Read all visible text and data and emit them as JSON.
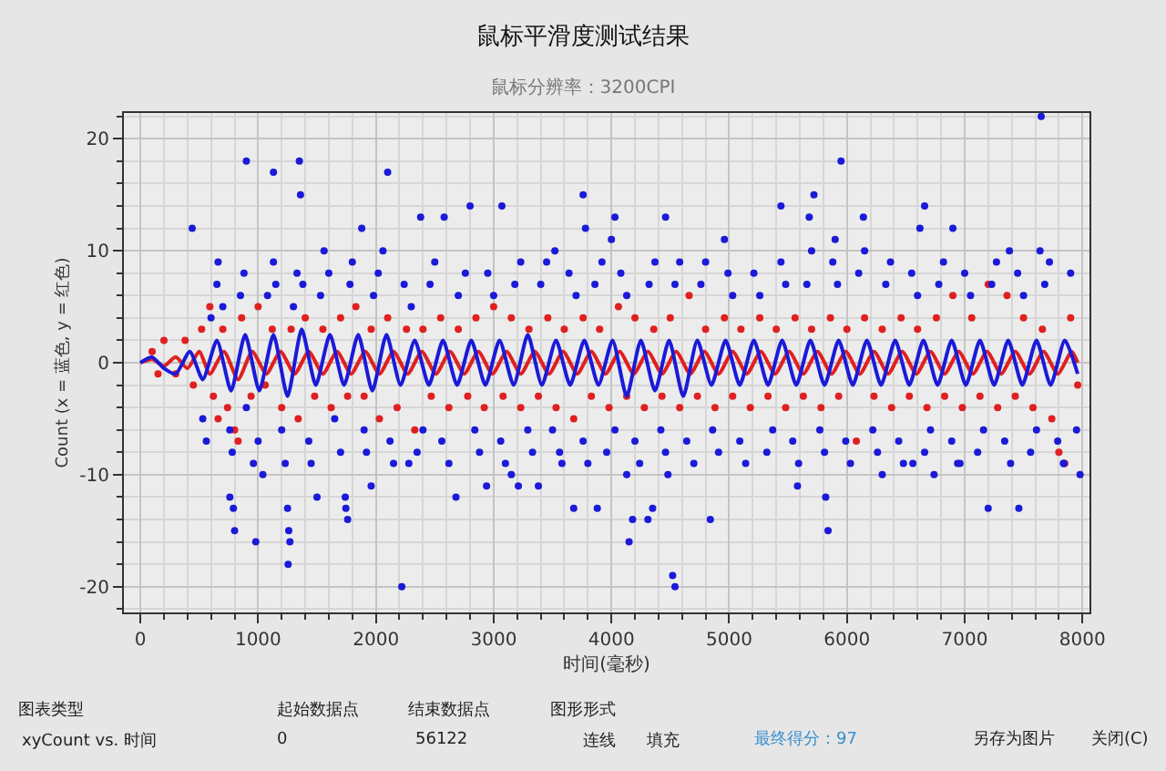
{
  "chart_data": {
    "type": "scatter",
    "title": "鼠标平滑度测试结果",
    "subtitle": "鼠标分辨率：3200CPI",
    "xlabel": "时间(毫秒)",
    "ylabel": "Count (x = 蓝色, y = 红色)",
    "xlim": [
      -140,
      8060
    ],
    "ylim": [
      -22.3,
      22.3
    ],
    "xticks": [
      0,
      1000,
      2000,
      3000,
      4000,
      5000,
      6000,
      7000,
      8000
    ],
    "yticks": [
      -20,
      -10,
      0,
      10,
      20
    ],
    "grid": true,
    "annotations": [
      "图表类型",
      "xyCount vs. 时间",
      "起始数据点",
      "0",
      "结束数据点",
      "56122",
      "图形形式",
      "连线",
      "填充",
      "最终得分：97",
      "另存为图片",
      "关闭(C)"
    ],
    "series": [
      {
        "marker": "circle",
        "color": "#e02020",
        "x": [
          100,
          150,
          200,
          300,
          380,
          450,
          520,
          590,
          620,
          660,
          700,
          740,
          800,
          830,
          860,
          940,
          1000,
          1060,
          1120,
          1200,
          1280,
          1340,
          1400,
          1480,
          1550,
          1620,
          1700,
          1760,
          1830,
          1900,
          1960,
          2030,
          2100,
          2180,
          2260,
          2330,
          2400,
          2470,
          2550,
          2620,
          2700,
          2780,
          2850,
          2920,
          3000,
          3080,
          3150,
          3230,
          3300,
          3380,
          3460,
          3530,
          3600,
          3680,
          3760,
          3830,
          3900,
          3980,
          4060,
          4130,
          4200,
          4280,
          4360,
          4430,
          4500,
          4580,
          4660,
          4730,
          4800,
          4880,
          4960,
          5030,
          5100,
          5180,
          5260,
          5330,
          5400,
          5480,
          5560,
          5630,
          5700,
          5780,
          5860,
          5930,
          6000,
          6080,
          6150,
          6230,
          6300,
          6380,
          6460,
          6530,
          6600,
          6680,
          6760,
          6830,
          6900,
          6980,
          7060,
          7130,
          7200,
          7280,
          7360,
          7430,
          7500,
          7580,
          7660,
          7740,
          7800,
          7850,
          7900,
          7960
        ],
        "values": [
          1,
          -1,
          2,
          -1,
          2,
          -2,
          3,
          5,
          -3,
          -5,
          3,
          -4,
          -6,
          -7,
          4,
          -3,
          5,
          -2,
          3,
          -4,
          3,
          -5,
          4,
          -3,
          3,
          -4,
          4,
          -3,
          5,
          -3,
          3,
          -5,
          4,
          -4,
          3,
          -6,
          3,
          -3,
          4,
          -4,
          3,
          -3,
          4,
          -4,
          5,
          -3,
          4,
          -4,
          3,
          -3,
          4,
          -4,
          3,
          -5,
          4,
          -3,
          3,
          -4,
          5,
          -3,
          4,
          -4,
          3,
          -3,
          4,
          -4,
          6,
          -3,
          3,
          -4,
          4,
          -3,
          3,
          -4,
          4,
          -3,
          3,
          -4,
          4,
          -3,
          3,
          -4,
          4,
          -3,
          3,
          -7,
          4,
          -3,
          3,
          -4,
          4,
          -3,
          3,
          -4,
          4,
          -3,
          6,
          -4,
          4,
          -3,
          7,
          -4,
          6,
          -3,
          4,
          -4,
          3,
          -5,
          -8,
          -9,
          4,
          -2
        ]
      },
      {
        "marker": "circle",
        "color": "#1a1ad8",
        "x": [
          530,
          560,
          600,
          650,
          660,
          700,
          760,
          780,
          850,
          880,
          900,
          960,
          1000,
          1080,
          1130,
          1150,
          1200,
          1230,
          1300,
          1330,
          1380,
          1430,
          1450,
          1530,
          1560,
          1600,
          1650,
          1700,
          1780,
          1800,
          1900,
          1920,
          1980,
          2020,
          2120,
          2150,
          2240,
          2300,
          2350,
          2400,
          2460,
          2500,
          2560,
          2620,
          2700,
          2760,
          2840,
          2880,
          2950,
          3000,
          3060,
          3100,
          3180,
          3230,
          3290,
          3330,
          3400,
          3450,
          3500,
          3560,
          3640,
          3700,
          3760,
          3800,
          3860,
          3920,
          3960,
          4030,
          4080,
          4130,
          4200,
          4240,
          4320,
          4370,
          4420,
          4460,
          4540,
          4580,
          4640,
          4700,
          4760,
          4800,
          4860,
          4910,
          4990,
          5030,
          5090,
          5140,
          5210,
          5260,
          5320,
          5370,
          5440,
          5480,
          5540,
          5590,
          5660,
          5700,
          5770,
          5810,
          5880,
          5920,
          5990,
          6030,
          6100,
          6150,
          6220,
          6260,
          6330,
          6370,
          6440,
          6480,
          6550,
          6600,
          6660,
          6710,
          6780,
          6820,
          6890,
          6940,
          7000,
          7050,
          7110,
          7160,
          7230,
          7270,
          7340,
          7390,
          7450,
          7500,
          7560,
          7610,
          7680,
          7720,
          7790,
          7840,
          7900,
          7950,
          900,
          1130,
          1350,
          1360,
          440,
          2100,
          2060,
          1880,
          2380,
          2580,
          2800,
          3070,
          3760,
          3780,
          4030,
          3520,
          4000,
          4460,
          4960,
          5440,
          5680,
          5720,
          5950,
          5900,
          6140,
          6660,
          6620,
          6900,
          7650,
          7640,
          7380,
          760,
          790,
          800,
          980,
          1040,
          1250,
          1260,
          1270,
          1255,
          1500,
          1740,
          1745,
          1760,
          1960,
          2220,
          2280,
          2680,
          2940,
          3150,
          3210,
          3380,
          3580,
          3680,
          3880,
          4150,
          4180,
          4130,
          4350,
          4310,
          4520,
          4540,
          4480,
          4840,
          5580,
          5820,
          5840,
          6300,
          6560,
          6740,
          6960,
          7200,
          7460,
          7840,
          7980
        ],
        "values": [
          -5,
          -7,
          4,
          7,
          9,
          5,
          -6,
          -8,
          6,
          8,
          -4,
          -9,
          -7,
          6,
          9,
          7,
          -6,
          -9,
          5,
          8,
          7,
          -7,
          -9,
          6,
          10,
          8,
          -5,
          -8,
          7,
          9,
          -6,
          -8,
          6,
          8,
          -7,
          -9,
          7,
          5,
          -8,
          -6,
          7,
          9,
          -7,
          -9,
          6,
          8,
          -6,
          -8,
          8,
          6,
          -7,
          -9,
          7,
          9,
          -6,
          -8,
          7,
          9,
          -6,
          -8,
          8,
          6,
          -7,
          -9,
          7,
          9,
          -8,
          -6,
          8,
          6,
          -7,
          -9,
          7,
          9,
          -6,
          -8,
          7,
          9,
          -7,
          -9,
          7,
          9,
          -6,
          -8,
          8,
          6,
          -7,
          -9,
          8,
          6,
          -8,
          -6,
          9,
          7,
          -7,
          -9,
          7,
          10,
          -6,
          -8,
          9,
          7,
          -7,
          -9,
          8,
          10,
          -6,
          -8,
          7,
          9,
          -7,
          -9,
          8,
          6,
          -8,
          -6,
          7,
          9,
          -7,
          -9,
          8,
          6,
          -8,
          -6,
          7,
          9,
          -7,
          -9,
          8,
          6,
          -8,
          -6,
          7,
          9,
          -7,
          -9,
          8,
          -6,
          18,
          17,
          18,
          15,
          12,
          17,
          10,
          12,
          13,
          13,
          14,
          14,
          15,
          12,
          13,
          10,
          11,
          13,
          11,
          14,
          13,
          15,
          18,
          11,
          13,
          14,
          12,
          12,
          22,
          10,
          10,
          -12,
          -13,
          -15,
          -16,
          -10,
          -13,
          -15,
          -16,
          -18,
          -12,
          -12,
          -13,
          -14,
          -11,
          -20,
          -9,
          -12,
          -11,
          -10,
          -11,
          -11,
          -9,
          -13,
          -13,
          -16,
          -14,
          -10,
          -13,
          -14,
          -19,
          -20,
          -10,
          -14,
          -11,
          -12,
          -15,
          -10,
          -9,
          -10,
          -9,
          -13,
          -13,
          -9,
          -10
        ]
      },
      {
        "type": "line",
        "marker": "none",
        "color": "#e02020",
        "x": [
          0,
          100,
          200,
          300,
          400,
          500,
          590,
          710,
          830,
          950,
          1070,
          1190,
          1310,
          1430,
          1550,
          1670,
          1790,
          1910,
          2030,
          2150,
          2270,
          2390,
          2510,
          2630,
          2750,
          2870,
          2990,
          3110,
          3230,
          3350,
          3470,
          3590,
          3710,
          3830,
          3950,
          4070,
          4190,
          4310,
          4430,
          4550,
          4670,
          4790,
          4910,
          5030,
          5150,
          5270,
          5390,
          5510,
          5630,
          5750,
          5870,
          5990,
          6110,
          6230,
          6350,
          6470,
          6590,
          6710,
          6830,
          6950,
          7070,
          7190,
          7310,
          7430,
          7550,
          7670,
          7790,
          7910,
          7960
        ],
        "values": [
          0,
          0.3,
          -0.3,
          0.5,
          -0.5,
          1,
          -1,
          1,
          -1.5,
          1,
          -1,
          1,
          -1,
          1,
          -1,
          1,
          -1,
          1,
          -1,
          1,
          -1,
          1,
          -1,
          1,
          -1,
          1,
          -1,
          1,
          -1,
          1,
          -1,
          1,
          -1,
          1,
          -1,
          1,
          -1,
          1,
          -1,
          1,
          -1,
          1,
          -1,
          1,
          -1,
          1,
          -1,
          1,
          -1,
          1,
          -1,
          1,
          -1,
          1,
          -1,
          1,
          -1,
          1,
          -1,
          1,
          -1,
          1,
          -1,
          1,
          -1,
          1,
          -1,
          1,
          0
        ]
      },
      {
        "type": "line",
        "marker": "none",
        "color": "#1a1ad8",
        "x": [
          0,
          100,
          200,
          300,
          420,
          530,
          650,
          770,
          890,
          1010,
          1130,
          1250,
          1370,
          1490,
          1610,
          1730,
          1850,
          1970,
          2090,
          2210,
          2330,
          2450,
          2570,
          2690,
          2810,
          2930,
          3050,
          3170,
          3290,
          3410,
          3530,
          3650,
          3770,
          3890,
          4010,
          4130,
          4250,
          4370,
          4490,
          4610,
          4730,
          4850,
          4970,
          5090,
          5210,
          5330,
          5450,
          5570,
          5690,
          5810,
          5930,
          6050,
          6170,
          6290,
          6410,
          6530,
          6650,
          6770,
          6890,
          7010,
          7130,
          7250,
          7370,
          7490,
          7610,
          7730,
          7850,
          7960
        ],
        "values": [
          0,
          0.5,
          -0.5,
          -1,
          1,
          -1.5,
          2,
          -2.5,
          2.5,
          -2.5,
          2.5,
          -3,
          3,
          -2,
          2.5,
          -2,
          2.5,
          -2.5,
          2.5,
          -2,
          2,
          -2,
          2,
          -2,
          2,
          -2,
          2,
          -2,
          2.5,
          -2,
          2,
          -2,
          2,
          -2,
          2,
          -3,
          2,
          -2.5,
          2,
          -3,
          2,
          -2,
          2,
          -2,
          2,
          -2,
          2,
          -2,
          2,
          -2,
          2,
          -2,
          2,
          -2,
          2,
          -2,
          2,
          -2,
          2,
          -2,
          2,
          -2,
          2,
          -2,
          2,
          -2,
          2,
          -1
        ]
      }
    ]
  }
}
